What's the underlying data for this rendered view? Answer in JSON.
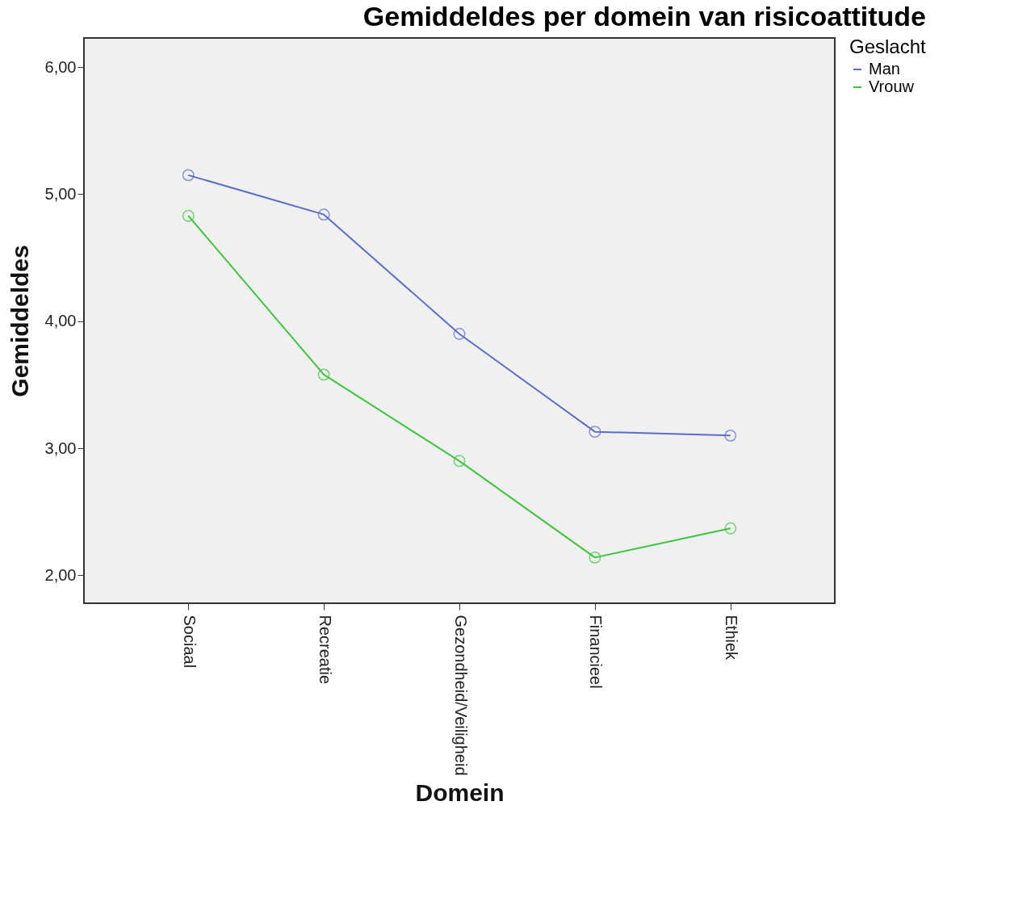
{
  "chart_data": {
    "type": "line",
    "title": "Gemiddeldes per domein van risicoattitude",
    "xlabel": "Domein",
    "ylabel": "Gemiddeldes",
    "legend_title": "Geslacht",
    "legend": "top right",
    "marker": "circle",
    "grid": false,
    "categories": [
      "Sociaal",
      "Recreatie",
      "Gezondheid/Veiligheid",
      "Financieel",
      "Ethiek"
    ],
    "ylim": [
      1.78,
      6.23
    ],
    "yticks": [
      {
        "value": 2,
        "label": "2,00"
      },
      {
        "value": 3,
        "label": "3,00"
      },
      {
        "value": 4,
        "label": "4,00"
      },
      {
        "value": 5,
        "label": "5,00"
      },
      {
        "value": 6,
        "label": "6,00"
      }
    ],
    "series": [
      {
        "name": "Man",
        "color": "#5a6ec8",
        "values": [
          5.15,
          4.84,
          3.9,
          3.13,
          3.1
        ]
      },
      {
        "name": "Vrouw",
        "color": "#3ec43e",
        "values": [
          4.83,
          3.58,
          2.9,
          2.14,
          2.37
        ]
      }
    ]
  }
}
